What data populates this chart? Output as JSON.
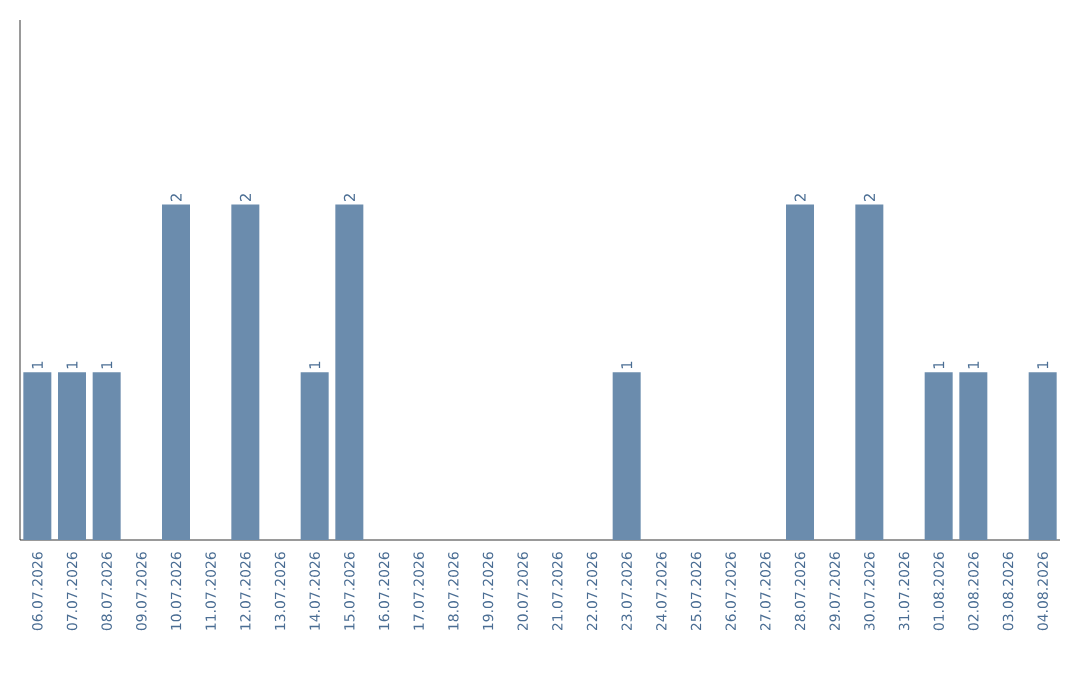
{
  "chart_data": {
    "type": "bar",
    "categories": [
      "06.07.2026",
      "07.07.2026",
      "08.07.2026",
      "09.07.2026",
      "10.07.2026",
      "11.07.2026",
      "12.07.2026",
      "13.07.2026",
      "14.07.2026",
      "15.07.2026",
      "16.07.2026",
      "17.07.2026",
      "18.07.2026",
      "19.07.2026",
      "20.07.2026",
      "21.07.2026",
      "22.07.2026",
      "23.07.2026",
      "24.07.2026",
      "25.07.2026",
      "26.07.2026",
      "27.07.2026",
      "28.07.2026",
      "29.07.2026",
      "30.07.2026",
      "31.07.2026",
      "01.08.2026",
      "02.08.2026",
      "03.08.2026",
      "04.08.2026"
    ],
    "values": [
      1,
      1,
      1,
      0,
      2,
      0,
      2,
      0,
      1,
      2,
      0,
      0,
      0,
      0,
      0,
      0,
      0,
      1,
      0,
      0,
      0,
      0,
      2,
      0,
      2,
      0,
      1,
      1,
      0,
      1
    ],
    "value_labels": [
      "1",
      "1",
      "1",
      null,
      "2",
      null,
      "2",
      null,
      "1",
      "2",
      null,
      null,
      null,
      null,
      null,
      null,
      null,
      "1",
      null,
      null,
      null,
      null,
      "2",
      null,
      "2",
      null,
      "1",
      "1",
      null,
      "1"
    ],
    "color": "#6b8cad",
    "ylim": [
      0,
      3.1
    ],
    "tick_labels": "x"
  }
}
